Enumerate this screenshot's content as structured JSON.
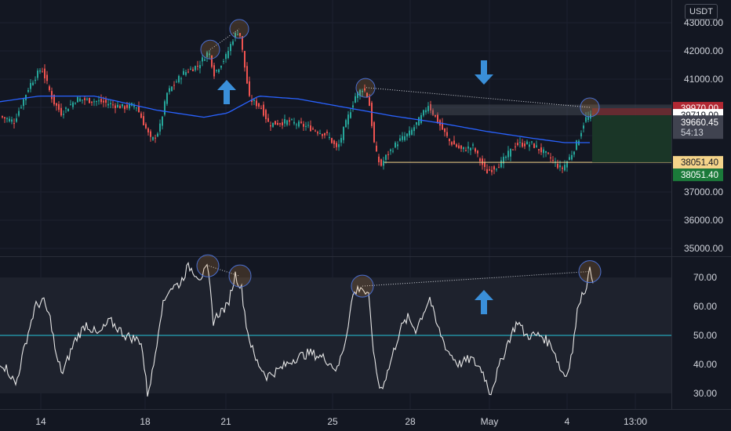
{
  "currency_label": "USDT",
  "colors": {
    "background": "#131722",
    "up": "#26a69a",
    "down": "#ef5350",
    "ma": "#2962ff",
    "rsi": "#e6e6e6",
    "rsi_mid": "#26c6da",
    "arrow": "#3a8fd9",
    "support": "#f5d48a",
    "circle": "#f0a34a"
  },
  "chart_data": [
    {
      "type": "candlestick",
      "name": "price",
      "y_ticks": [
        "43000.00",
        "42000.00",
        "41000.00",
        "40000.00",
        "39000.00",
        "38000.00",
        "37000.00",
        "36000.00",
        "35000.00"
      ],
      "ylim": [
        34700,
        43500
      ],
      "x_tick_labels": [
        "14",
        "18",
        "21",
        "25",
        "28",
        "May",
        "4",
        "13:00"
      ],
      "series_key_prices": {
        "start": 39700,
        "peak_left": 42750,
        "peak_left_date": "21",
        "peak_mid": 40700,
        "peak_mid_date": "25",
        "low": 37600,
        "last_close": 39660.45,
        "support": 38051.4
      },
      "price_labels": [
        {
          "name": "stop-loss",
          "value": "39970.00",
          "bg": "#b22833",
          "fg": "#ffffff"
        },
        {
          "name": "entry",
          "value": "39719.00",
          "bg": "#ffffff",
          "fg": "#131722"
        },
        {
          "name": "last-price",
          "value": "39660.45",
          "countdown": "54:13",
          "bg": "#404350",
          "fg": "#ffffff"
        },
        {
          "name": "support",
          "value": "38051.40",
          "bg": "#f5d48a",
          "fg": "#131722"
        },
        {
          "name": "take-profit",
          "value": "38051.40",
          "bg": "#1b7a3a",
          "fg": "#ffffff"
        }
      ]
    },
    {
      "type": "line",
      "name": "rsi",
      "y_ticks": [
        "70.00",
        "60.00",
        "50.00",
        "40.00",
        "30.00"
      ],
      "ylim": [
        26,
        76
      ],
      "band": [
        30,
        70
      ],
      "midline": 50,
      "key_points": [
        {
          "label": "start",
          "value": 41
        },
        {
          "label": "peak_left",
          "value": 74
        },
        {
          "label": "peak_left_2",
          "value": 71
        },
        {
          "label": "peak_mid",
          "value": 67
        },
        {
          "label": "low",
          "value": 30
        },
        {
          "label": "last",
          "value": 69
        }
      ]
    }
  ]
}
